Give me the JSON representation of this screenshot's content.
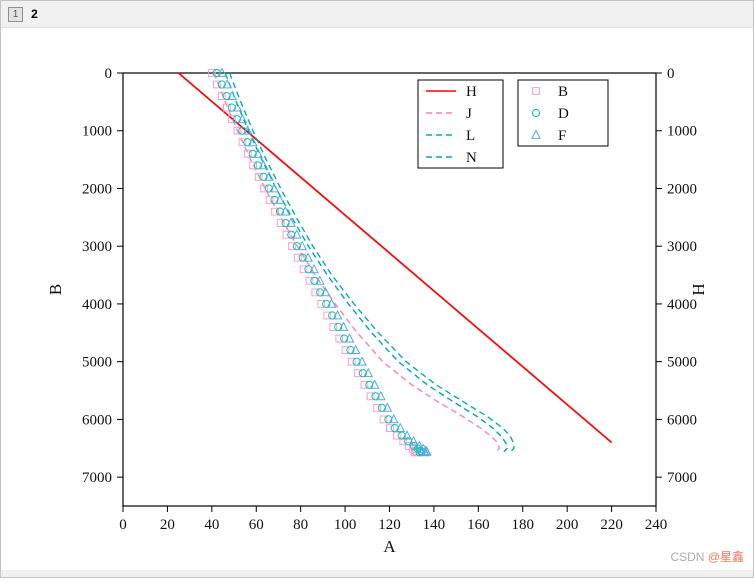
{
  "window": {
    "tabs": [
      {
        "label": "1"
      },
      {
        "label": "2"
      }
    ],
    "watermark": {
      "prefix": "CSDN ",
      "handle": "@星鑫"
    }
  },
  "chart_data": {
    "type": "line",
    "title": "",
    "xlabel": "A",
    "ylabel_left": "B",
    "ylabel_right": "H",
    "xlim": [
      0,
      240
    ],
    "ylim": [
      0,
      7500
    ],
    "xticks": [
      0,
      20,
      40,
      60,
      80,
      100,
      120,
      140,
      160,
      180,
      200,
      220,
      240
    ],
    "yticks": [
      0,
      1000,
      2000,
      3000,
      4000,
      5000,
      6000,
      7000
    ],
    "y_axis_inverted": true,
    "grid": false,
    "plot_background": "#ffffff",
    "legends": [
      {
        "position": "upper-center-left",
        "entries": [
          "H",
          "J",
          "L",
          "N"
        ]
      },
      {
        "position": "upper-center-right",
        "entries": [
          "B",
          "D",
          "F"
        ]
      }
    ],
    "series": [
      {
        "name": "H",
        "kind": "line",
        "style": "solid",
        "color": "#ff0000",
        "points": [
          [
            25,
            0
          ],
          [
            220,
            6400
          ]
        ]
      },
      {
        "name": "J",
        "kind": "line",
        "style": "dashed",
        "color": "#ff7fc0",
        "points": [
          [
            41,
            0
          ],
          [
            46,
            500
          ],
          [
            51.5,
            1000
          ],
          [
            57.5,
            1500
          ],
          [
            64,
            2000
          ],
          [
            71,
            2500
          ],
          [
            78.5,
            3000
          ],
          [
            86.5,
            3500
          ],
          [
            95.5,
            4000
          ],
          [
            105.5,
            4500
          ],
          [
            117,
            5000
          ],
          [
            130,
            5400
          ],
          [
            142,
            5700
          ],
          [
            153,
            5950
          ],
          [
            161,
            6150
          ],
          [
            166,
            6300
          ],
          [
            169,
            6420
          ],
          [
            169.5,
            6500
          ],
          [
            168,
            6560
          ]
        ]
      },
      {
        "name": "L",
        "kind": "line",
        "style": "dashed",
        "color": "#00b39b",
        "points": [
          [
            48,
            0
          ],
          [
            53,
            500
          ],
          [
            58.5,
            1000
          ],
          [
            64.5,
            1500
          ],
          [
            71,
            2000
          ],
          [
            78,
            2500
          ],
          [
            85.5,
            3000
          ],
          [
            94,
            3500
          ],
          [
            104,
            4000
          ],
          [
            115,
            4500
          ],
          [
            127.5,
            5000
          ],
          [
            141,
            5400
          ],
          [
            153.5,
            5700
          ],
          [
            164,
            5950
          ],
          [
            171,
            6150
          ],
          [
            174.5,
            6300
          ],
          [
            176,
            6420
          ],
          [
            176,
            6500
          ],
          [
            174.5,
            6560
          ]
        ]
      },
      {
        "name": "N",
        "kind": "line",
        "style": "dashed",
        "color": "#00a0cc",
        "points": [
          [
            46,
            0
          ],
          [
            51,
            500
          ],
          [
            56.5,
            1000
          ],
          [
            62.5,
            1500
          ],
          [
            69,
            2000
          ],
          [
            76,
            2500
          ],
          [
            83.5,
            3000
          ],
          [
            92,
            3500
          ],
          [
            101.5,
            4000
          ],
          [
            112,
            4500
          ],
          [
            124,
            5000
          ],
          [
            137,
            5400
          ],
          [
            149,
            5700
          ],
          [
            159.5,
            5950
          ],
          [
            166.5,
            6150
          ],
          [
            170.5,
            6300
          ],
          [
            172.5,
            6420
          ],
          [
            173,
            6500
          ],
          [
            171.5,
            6560
          ]
        ]
      },
      {
        "name": "B",
        "kind": "scatter",
        "marker": "square",
        "color": "#ff9dc9",
        "points": [
          [
            40,
            0
          ],
          [
            42.3,
            200
          ],
          [
            44.5,
            400
          ],
          [
            46.8,
            600
          ],
          [
            49.1,
            800
          ],
          [
            51.5,
            1000
          ],
          [
            53.8,
            1200
          ],
          [
            56.2,
            1400
          ],
          [
            58.6,
            1600
          ],
          [
            61.1,
            1800
          ],
          [
            63.5,
            2000
          ],
          [
            66,
            2200
          ],
          [
            68.5,
            2400
          ],
          [
            71,
            2600
          ],
          [
            73.6,
            2800
          ],
          [
            76.1,
            3000
          ],
          [
            78.7,
            3200
          ],
          [
            81.3,
            3400
          ],
          [
            84,
            3600
          ],
          [
            86.6,
            3800
          ],
          [
            89.3,
            4000
          ],
          [
            92,
            4200
          ],
          [
            94.7,
            4400
          ],
          [
            97.4,
            4600
          ],
          [
            100.2,
            4800
          ],
          [
            103,
            5000
          ],
          [
            105.8,
            5200
          ],
          [
            108.7,
            5400
          ],
          [
            111.5,
            5600
          ],
          [
            114.4,
            5800
          ],
          [
            117.3,
            6000
          ],
          [
            120.2,
            6150
          ],
          [
            123.3,
            6280
          ],
          [
            126.2,
            6380
          ],
          [
            128.8,
            6460
          ],
          [
            130.6,
            6510
          ],
          [
            131.8,
            6545
          ],
          [
            132.2,
            6562
          ],
          [
            131.4,
            6572
          ]
        ]
      },
      {
        "name": "D",
        "kind": "scatter",
        "marker": "circle",
        "color": "#00c9ad",
        "points": [
          [
            42.2,
            0
          ],
          [
            44.5,
            200
          ],
          [
            46.7,
            400
          ],
          [
            49,
            600
          ],
          [
            51.3,
            800
          ],
          [
            53.7,
            1000
          ],
          [
            56,
            1200
          ],
          [
            58.4,
            1400
          ],
          [
            60.8,
            1600
          ],
          [
            63.3,
            1800
          ],
          [
            65.7,
            2000
          ],
          [
            68.2,
            2200
          ],
          [
            70.7,
            2400
          ],
          [
            73.2,
            2600
          ],
          [
            75.8,
            2800
          ],
          [
            78.3,
            3000
          ],
          [
            80.9,
            3200
          ],
          [
            83.5,
            3400
          ],
          [
            86.2,
            3600
          ],
          [
            88.8,
            3800
          ],
          [
            91.5,
            4000
          ],
          [
            94.2,
            4200
          ],
          [
            96.9,
            4400
          ],
          [
            99.6,
            4600
          ],
          [
            102.4,
            4800
          ],
          [
            105.2,
            5000
          ],
          [
            108,
            5200
          ],
          [
            110.9,
            5400
          ],
          [
            113.7,
            5600
          ],
          [
            116.6,
            5800
          ],
          [
            119.5,
            6000
          ],
          [
            122.4,
            6150
          ],
          [
            125.5,
            6280
          ],
          [
            128.4,
            6380
          ],
          [
            131,
            6460
          ],
          [
            132.8,
            6510
          ],
          [
            134,
            6545
          ],
          [
            134.4,
            6562
          ],
          [
            133.6,
            6572
          ]
        ]
      },
      {
        "name": "F",
        "kind": "scatter",
        "marker": "triangle",
        "color": "#52aadf",
        "points": [
          [
            44.6,
            0
          ],
          [
            46.9,
            200
          ],
          [
            49.1,
            400
          ],
          [
            51.4,
            600
          ],
          [
            53.7,
            800
          ],
          [
            56.1,
            1000
          ],
          [
            58.4,
            1200
          ],
          [
            60.8,
            1400
          ],
          [
            63.2,
            1600
          ],
          [
            65.7,
            1800
          ],
          [
            68.1,
            2000
          ],
          [
            70.6,
            2200
          ],
          [
            73.1,
            2400
          ],
          [
            75.6,
            2600
          ],
          [
            78.2,
            2800
          ],
          [
            80.7,
            3000
          ],
          [
            83.3,
            3200
          ],
          [
            86,
            3400
          ],
          [
            88.6,
            3600
          ],
          [
            91.2,
            3800
          ],
          [
            93.9,
            4000
          ],
          [
            96.6,
            4200
          ],
          [
            99.3,
            4400
          ],
          [
            102,
            4600
          ],
          [
            104.8,
            4800
          ],
          [
            107.6,
            5000
          ],
          [
            110.4,
            5200
          ],
          [
            113.3,
            5400
          ],
          [
            116.1,
            5600
          ],
          [
            119,
            5800
          ],
          [
            121.9,
            6000
          ],
          [
            124.8,
            6150
          ],
          [
            127.9,
            6280
          ],
          [
            130.8,
            6380
          ],
          [
            133.4,
            6460
          ],
          [
            135.2,
            6510
          ],
          [
            136.4,
            6545
          ],
          [
            136.8,
            6562
          ],
          [
            136,
            6572
          ]
        ]
      }
    ]
  }
}
